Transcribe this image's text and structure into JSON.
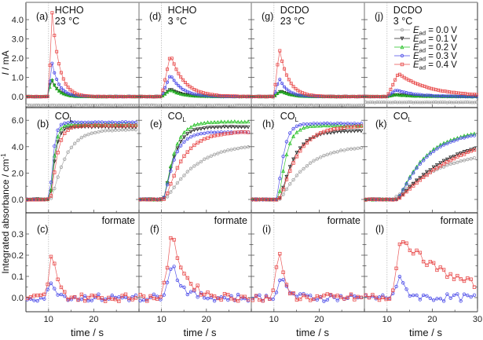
{
  "chart_data": [
    {
      "type": "line",
      "row": "current",
      "ylabel": "I / mA",
      "ylim": [
        -0.6,
        4.6
      ],
      "yticks": [
        0.0,
        1.0,
        2.0,
        3.0,
        4.0
      ],
      "ytick_labels": [
        "0.0",
        "1.0",
        "2.0",
        "3.0",
        "4.0"
      ],
      "panels": [
        {
          "label": "(a)",
          "title_line1": "HCHO",
          "title_line2": "23 °C",
          "series": [
            {
              "name": "E_ad = 0.0 V",
              "peak": -0.45,
              "peak_t": 10.5,
              "decay": 3,
              "baseline": -0.45
            },
            {
              "name": "E_ad = 0.1 V",
              "peak": 1.0,
              "peak_t": 10.5,
              "decay": 1.5,
              "baseline": 0.0
            },
            {
              "name": "E_ad = 0.2 V",
              "peak": 1.0,
              "peak_t": 10.6,
              "decay": 1.4,
              "baseline": 0.0
            },
            {
              "name": "E_ad = 0.3 V",
              "peak": 1.85,
              "peak_t": 10.7,
              "decay": 1.5,
              "baseline": 0.0
            },
            {
              "name": "E_ad = 0.4 V",
              "peak": 4.35,
              "peak_t": 10.8,
              "decay": 1.6,
              "baseline": 0.0
            }
          ]
        },
        {
          "label": "(d)",
          "title_line1": "HCHO",
          "title_line2": "3 °C",
          "series": [
            {
              "name": "E_ad = 0.0 V",
              "peak": -0.45,
              "peak_t": 11,
              "decay": 3,
              "baseline": -0.45
            },
            {
              "name": "E_ad = 0.1 V",
              "peak": 0.4,
              "peak_t": 12,
              "decay": 2.5,
              "baseline": 0.0
            },
            {
              "name": "E_ad = 0.2 V",
              "peak": 0.35,
              "peak_t": 12,
              "decay": 2.5,
              "baseline": 0.0
            },
            {
              "name": "E_ad = 0.3 V",
              "peak": 1.15,
              "peak_t": 12,
              "decay": 2.5,
              "baseline": 0.0
            },
            {
              "name": "E_ad = 0.4 V",
              "peak": 2.2,
              "peak_t": 12,
              "decay": 3.0,
              "baseline": 0.0
            }
          ]
        },
        {
          "label": "(g)",
          "title_line1": "DCDO",
          "title_line2": "23 °C",
          "series": [
            {
              "name": "E_ad = 0.0 V",
              "peak": -0.45,
              "peak_t": 11,
              "decay": 3,
              "baseline": -0.45
            },
            {
              "name": "E_ad = 0.1 V",
              "peak": 0.3,
              "peak_t": 11.5,
              "decay": 2.0,
              "baseline": 0.0
            },
            {
              "name": "E_ad = 0.2 V",
              "peak": 0.3,
              "peak_t": 11.5,
              "decay": 2.0,
              "baseline": 0.0
            },
            {
              "name": "E_ad = 0.3 V",
              "peak": 0.95,
              "peak_t": 11.2,
              "decay": 1.8,
              "baseline": 0.0
            },
            {
              "name": "E_ad = 0.4 V",
              "peak": 2.5,
              "peak_t": 11.2,
              "decay": 2.0,
              "baseline": 0.0
            }
          ]
        },
        {
          "label": "(j)",
          "title_line1": "DCDO",
          "title_line2": "3 °C",
          "series": [
            {
              "name": "E_ad = 0.0 V",
              "peak": -0.3,
              "peak_t": 11,
              "decay": 3,
              "baseline": -0.3
            },
            {
              "name": "E_ad = 0.1 V",
              "peak": 0.1,
              "peak_t": 12,
              "decay": 4,
              "baseline": 0.0
            },
            {
              "name": "E_ad = 0.2 V",
              "peak": 0.1,
              "peak_t": 12,
              "decay": 4,
              "baseline": 0.0
            },
            {
              "name": "E_ad = 0.3 V",
              "peak": 0.35,
              "peak_t": 12,
              "decay": 4,
              "baseline": 0.0
            },
            {
              "name": "E_ad = 0.4 V",
              "peak": 1.2,
              "peak_t": 12.5,
              "decay": 7,
              "baseline": 0.0
            }
          ]
        }
      ]
    },
    {
      "type": "line",
      "row": "CO_L",
      "ylabel": "Integrated absorbance / cm-1",
      "ylim": [
        -1.0,
        6.5
      ],
      "yticks": [
        0.0,
        2.0,
        4.0,
        6.0
      ],
      "ytick_labels": [
        "0.0",
        "2.0",
        "4.0",
        "6.0"
      ],
      "panels": [
        {
          "label": "(b)",
          "annotation": "CO_L",
          "series": [
            {
              "name": "E_ad = 0.0 V",
              "plateau": 5.3,
              "onset": 10.3,
              "rate": 0.35
            },
            {
              "name": "E_ad = 0.1 V",
              "plateau": 5.5,
              "onset": 10.2,
              "rate": 1.3
            },
            {
              "name": "E_ad = 0.2 V",
              "plateau": 5.7,
              "onset": 10.2,
              "rate": 1.5
            },
            {
              "name": "E_ad = 0.3 V",
              "plateau": 5.85,
              "onset": 10.1,
              "rate": 1.8
            },
            {
              "name": "E_ad = 0.4 V",
              "plateau": 5.6,
              "onset": 10.3,
              "rate": 0.9
            }
          ]
        },
        {
          "label": "(e)",
          "annotation": "CO_L",
          "series": [
            {
              "name": "E_ad = 0.0 V",
              "plateau": 4.3,
              "onset": 10.5,
              "rate": 0.15
            },
            {
              "name": "E_ad = 0.1 V",
              "plateau": 5.5,
              "onset": 10.3,
              "rate": 0.5
            },
            {
              "name": "E_ad = 0.2 V",
              "plateau": 5.9,
              "onset": 10.3,
              "rate": 0.5
            },
            {
              "name": "E_ad = 0.3 V",
              "plateau": 5.1,
              "onset": 10.3,
              "rate": 0.5
            },
            {
              "name": "E_ad = 0.4 V",
              "plateau": 5.15,
              "onset": 10.5,
              "rate": 0.27
            }
          ]
        },
        {
          "label": "(h)",
          "annotation": "CO_L",
          "series": [
            {
              "name": "E_ad = 0.0 V",
              "plateau": 4.1,
              "onset": 11,
              "rate": 0.18
            },
            {
              "name": "E_ad = 0.1 V",
              "plateau": 5.2,
              "onset": 11,
              "rate": 0.35
            },
            {
              "name": "E_ad = 0.2 V",
              "plateau": 5.6,
              "onset": 10.8,
              "rate": 0.7
            },
            {
              "name": "E_ad = 0.3 V",
              "plateau": 5.75,
              "onset": 10.5,
              "rate": 0.9
            },
            {
              "name": "E_ad = 0.4 V",
              "plateau": 5.6,
              "onset": 11,
              "rate": 0.27
            }
          ]
        },
        {
          "label": "(k)",
          "annotation": "CO_L",
          "series": [
            {
              "name": "E_ad = 0.0 V",
              "plateau": 3.8,
              "onset": 11,
              "rate": 0.1
            },
            {
              "name": "E_ad = 0.1 V",
              "plateau": 5.0,
              "onset": 12,
              "rate": 0.09
            },
            {
              "name": "E_ad = 0.2 V",
              "plateau": 5.3,
              "onset": 12,
              "rate": 0.17
            },
            {
              "name": "E_ad = 0.3 V",
              "plateau": 5.25,
              "onset": 12,
              "rate": 0.16
            },
            {
              "name": "E_ad = 0.4 V",
              "plateau": 5.5,
              "onset": 12,
              "rate": 0.07
            }
          ]
        }
      ]
    },
    {
      "type": "line",
      "row": "formate",
      "ylabel": "",
      "ylim": [
        -0.1,
        0.38
      ],
      "yticks": [
        0.0,
        0.1,
        0.2,
        0.3
      ],
      "ytick_labels": [
        "0.0",
        "0.1",
        "0.2",
        "0.3"
      ],
      "panels": [
        {
          "label": "(c)",
          "annotation": "formate",
          "series": [
            {
              "name": "E_ad = 0.3 V",
              "peak": 0.07,
              "peak_t": 11,
              "width": 1.2,
              "decay": 1.2
            },
            {
              "name": "E_ad = 0.4 V",
              "peak": 0.225,
              "peak_t": 11,
              "width": 1.0,
              "decay": 1.0
            }
          ]
        },
        {
          "label": "(f)",
          "annotation": "formate",
          "series": [
            {
              "name": "E_ad = 0.3 V",
              "peak": 0.16,
              "peak_t": 12.5,
              "width": 1.5,
              "decay": 2.0
            },
            {
              "name": "E_ad = 0.4 V",
              "peak": 0.29,
              "peak_t": 12.5,
              "width": 1.5,
              "decay": 2.8
            }
          ]
        },
        {
          "label": "(i)",
          "annotation": "formate",
          "series": [
            {
              "name": "E_ad = 0.3 V",
              "peak": 0.08,
              "peak_t": 12,
              "width": 1.5,
              "decay": 1.5
            },
            {
              "name": "E_ad = 0.4 V",
              "peak": 0.24,
              "peak_t": 11.2,
              "width": 0.9,
              "decay": 1.0
            }
          ]
        },
        {
          "label": "(l)",
          "annotation": "formate",
          "series": [
            {
              "name": "E_ad = 0.3 V",
              "peak": 0.085,
              "peak_t": 13,
              "width": 1.5,
              "decay": 1.5
            },
            {
              "name": "E_ad = 0.4 V",
              "peak": 0.28,
              "peak_t": 13.3,
              "width": 1.5,
              "decay": 11
            }
          ]
        }
      ]
    }
  ],
  "xaxis": {
    "label": "time / s",
    "xlim": [
      5,
      30
    ],
    "ticks": [
      10,
      20,
      30
    ],
    "tick_labels": [
      "10",
      "20",
      "30"
    ],
    "minor_ticks": [
      15,
      25
    ],
    "marker_line_t": 10
  },
  "legend": {
    "placement": "top-right of panel (j)",
    "entries": [
      {
        "symbol": "E",
        "subscript": "ad",
        "value": "= 0.0 V",
        "color": "#a0a0a0",
        "marker": "circle"
      },
      {
        "symbol": "E",
        "subscript": "ad",
        "value": "= 0.1 V",
        "color": "#222222",
        "marker": "triangle-down"
      },
      {
        "symbol": "E",
        "subscript": "ad",
        "value": "= 0.2 V",
        "color": "#22c022",
        "marker": "triangle-up"
      },
      {
        "symbol": "E",
        "subscript": "ad",
        "value": "= 0.3 V",
        "color": "#4a4ae8",
        "marker": "circle"
      },
      {
        "symbol": "E",
        "subscript": "ad",
        "value": "= 0.4 V",
        "color": "#e84a4a",
        "marker": "square"
      }
    ]
  },
  "ylabels": {
    "row1": "I / mA",
    "row23": "Integrated absorbance / cm",
    "row23_sup": "-1"
  },
  "series_colors": {
    "E_ad = 0.0 V": "#a0a0a0",
    "E_ad = 0.1 V": "#222222",
    "E_ad = 0.2 V": "#22c022",
    "E_ad = 0.3 V": "#4a4ae8",
    "E_ad = 0.4 V": "#e84a4a"
  }
}
